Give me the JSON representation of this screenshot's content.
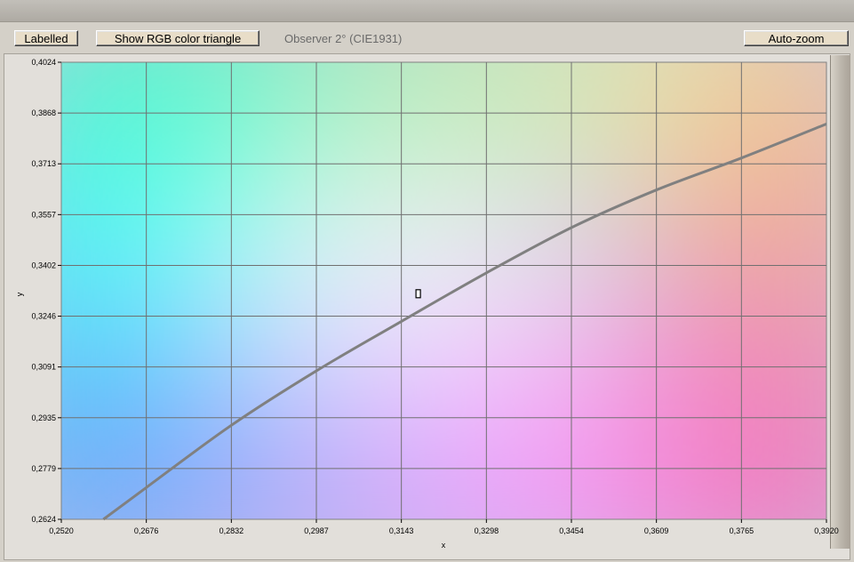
{
  "toolbar": {
    "labelled_label": "Labelled",
    "rgb_triangle_label": "Show RGB color triangle",
    "observer_label": "Observer 2° (CIE1931)",
    "autozoom_label": "Auto-zoom"
  },
  "chart_data": {
    "type": "line",
    "xlabel": "x",
    "ylabel": "y",
    "xlim": [
      0.252,
      0.392
    ],
    "ylim": [
      0.2624,
      0.4024
    ],
    "x_ticks": [
      "0,2520",
      "0,2676",
      "0,2832",
      "0,2987",
      "0,3143",
      "0,3298",
      "0,3454",
      "0,3609",
      "0,3765",
      "0,3920"
    ],
    "y_ticks": [
      "0,4024",
      "0,3868",
      "0,3713",
      "0,3557",
      "0,3402",
      "0,3246",
      "0,3091",
      "0,2935",
      "0,2779",
      "0,2624"
    ],
    "grid": true,
    "background": "CIE 1931 chromaticity colors",
    "series": [
      {
        "type": "planckian-locus",
        "color": "#808080",
        "x": [
          0.2597,
          0.2676,
          0.2832,
          0.2987,
          0.3143,
          0.3298,
          0.3454,
          0.3609,
          0.3765,
          0.392
        ],
        "y": [
          0.2624,
          0.2722,
          0.2913,
          0.3079,
          0.3231,
          0.3379,
          0.3518,
          0.3633,
          0.3731,
          0.3835
        ]
      }
    ],
    "marker": {
      "x": 0.3173,
      "y": 0.3315
    }
  }
}
